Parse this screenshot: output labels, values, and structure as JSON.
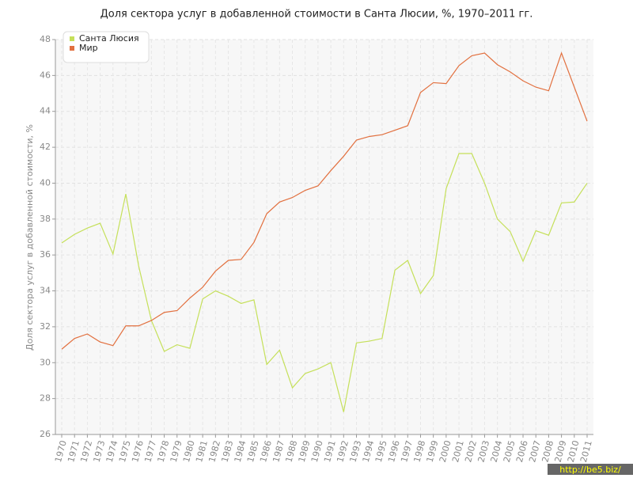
{
  "chart_data": {
    "type": "line",
    "title": "Доля сектора услуг в добавленной стоимости в Санта Люсии, %, 1970–2011 гг.",
    "y_label": "Доля сектора услуг в добавленной стоимости, %",
    "watermark": "http://be5.biz/",
    "categories": [
      "1970",
      "1971",
      "1972",
      "1973",
      "1974",
      "1975",
      "1976",
      "1977",
      "1978",
      "1979",
      "1980",
      "1981",
      "1982",
      "1983",
      "1984",
      "1985",
      "1986",
      "1987",
      "1988",
      "1989",
      "1990",
      "1991",
      "1992",
      "1993",
      "1994",
      "1995",
      "1996",
      "1997",
      "1998",
      "1999",
      "2000",
      "2001",
      "2002",
      "2003",
      "2004",
      "2005",
      "2006",
      "2007",
      "2008",
      "2009",
      "2010",
      "2011"
    ],
    "series": [
      {
        "name": "Санта Люсия",
        "color": "#c5e05a",
        "values": [
          36.67,
          37.15,
          37.5,
          37.77,
          36.05,
          39.4,
          35.4,
          32.35,
          30.63,
          31.0,
          30.8,
          33.55,
          34.0,
          33.7,
          33.3,
          33.5,
          29.9,
          30.7,
          28.6,
          29.4,
          29.65,
          30.0,
          27.25,
          31.1,
          31.2,
          31.35,
          35.15,
          35.7,
          33.85,
          34.85,
          39.7,
          41.65,
          41.65,
          40.0,
          38.0,
          37.3,
          35.65,
          37.35,
          37.1,
          38.9,
          38.95,
          40.0
        ]
      },
      {
        "name": "Мир",
        "color": "#e2703f",
        "values": [
          30.75,
          31.35,
          31.6,
          31.15,
          30.95,
          32.05,
          32.05,
          32.35,
          32.8,
          32.9,
          33.6,
          34.2,
          35.1,
          35.7,
          35.75,
          36.7,
          38.3,
          38.95,
          39.2,
          39.6,
          39.85,
          40.7,
          41.5,
          42.4,
          42.6,
          42.7,
          42.95,
          43.2,
          45.05,
          45.6,
          45.55,
          46.55,
          47.1,
          47.25,
          46.6,
          46.2,
          45.7,
          45.35,
          45.15,
          47.25,
          45.35,
          43.45
        ]
      }
    ],
    "ylim": [
      26,
      48
    ],
    "yticks": [
      26,
      28,
      30,
      32,
      34,
      36,
      38,
      40,
      42,
      44,
      46,
      48
    ],
    "grid": true,
    "legend": "top-left"
  }
}
